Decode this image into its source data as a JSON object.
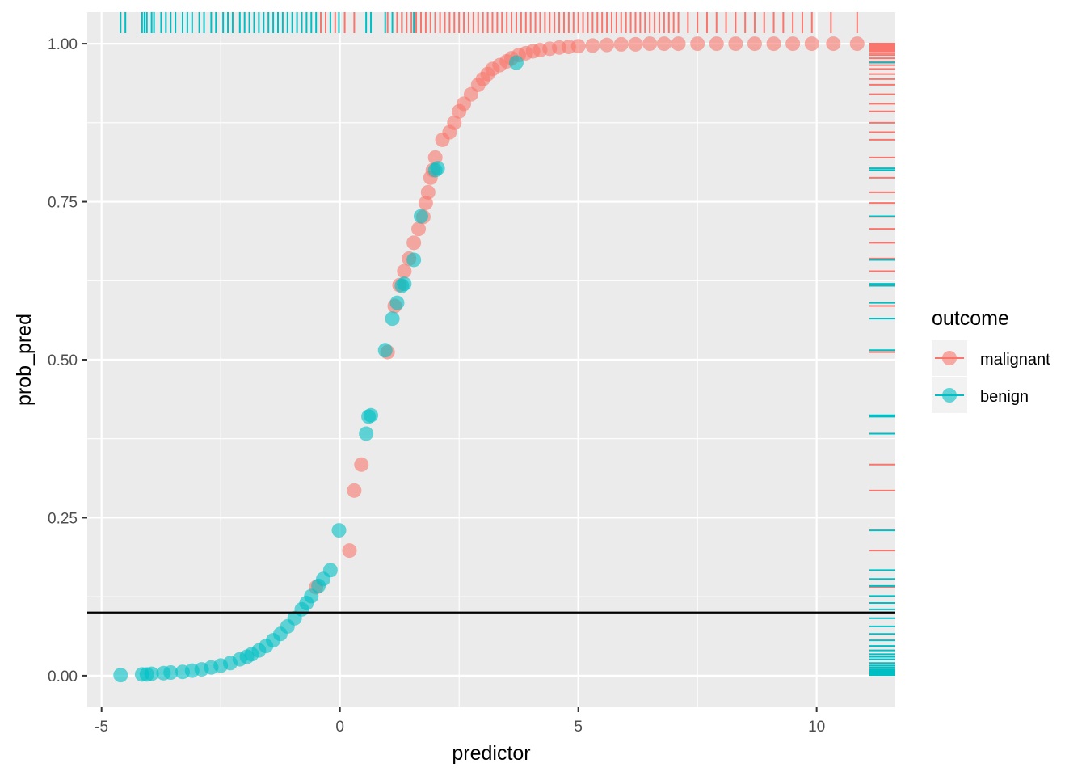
{
  "chart_data": {
    "type": "scatter",
    "title": "",
    "xlabel": "predictor",
    "ylabel": "prob_pred",
    "xlim": [
      -5.3,
      11.65
    ],
    "ylim": [
      -0.05,
      1.05
    ],
    "x_ticks": [
      -5,
      0,
      5,
      10
    ],
    "x_tick_labels": [
      "-5",
      "0",
      "5",
      "10"
    ],
    "y_ticks": [
      0,
      0.25,
      0.5,
      0.75,
      1
    ],
    "y_tick_labels": [
      "0.00",
      "0.25",
      "0.50",
      "0.75",
      "1.00"
    ],
    "hline": 0.1,
    "grid": true,
    "legend_position": "right",
    "legend_title": "outcome",
    "series": [
      {
        "name": "malignant",
        "color": "#F8766D",
        "x": [
          -0.5,
          0.2,
          0.3,
          0.45,
          1.0,
          1.15,
          1.25,
          1.35,
          1.45,
          1.55,
          1.65,
          1.75,
          1.8,
          1.85,
          1.9,
          1.95,
          2.0,
          2.15,
          2.3,
          2.4,
          2.5,
          2.6,
          2.75,
          2.9,
          3.0,
          3.1,
          3.2,
          3.35,
          3.5,
          3.6,
          3.75,
          3.9,
          4.05,
          4.2,
          4.4,
          4.6,
          4.8,
          5.0,
          5.3,
          5.6,
          5.9,
          6.2,
          6.5,
          6.8,
          7.1,
          7.5,
          7.9,
          8.3,
          8.7,
          9.1,
          9.5,
          9.9,
          10.35,
          10.85
        ],
        "y": [
          0.14,
          0.198,
          0.293,
          0.334,
          0.512,
          0.585,
          0.618,
          0.64,
          0.66,
          0.685,
          0.707,
          0.726,
          0.748,
          0.765,
          0.788,
          0.8,
          0.82,
          0.848,
          0.86,
          0.875,
          0.893,
          0.905,
          0.92,
          0.935,
          0.944,
          0.952,
          0.96,
          0.966,
          0.972,
          0.977,
          0.982,
          0.985,
          0.988,
          0.99,
          0.992,
          0.994,
          0.995,
          0.996,
          0.997,
          0.998,
          0.999,
          0.999,
          1.0,
          1.0,
          1.0,
          1.0,
          1.0,
          1.0,
          1.0,
          1.0,
          1.0,
          1.0,
          1.0,
          1.0
        ]
      },
      {
        "name": "benign",
        "color": "#00BFC4",
        "x": [
          -4.6,
          -4.15,
          -4.05,
          -3.95,
          -3.7,
          -3.55,
          -3.3,
          -3.1,
          -2.9,
          -2.7,
          -2.5,
          -2.3,
          -2.1,
          -1.95,
          -1.85,
          -1.7,
          -1.55,
          -1.4,
          -1.25,
          -1.1,
          -0.95,
          -0.8,
          -0.7,
          -0.6,
          -0.45,
          -0.35,
          -0.2,
          -0.02,
          0.55,
          0.6,
          0.65,
          0.95,
          1.1,
          1.2,
          1.3,
          1.35,
          1.55,
          1.7,
          2.0,
          2.05,
          3.7
        ],
        "y": [
          0.001,
          0.002,
          0.002,
          0.003,
          0.004,
          0.005,
          0.006,
          0.008,
          0.01,
          0.013,
          0.016,
          0.02,
          0.026,
          0.03,
          0.034,
          0.04,
          0.047,
          0.056,
          0.066,
          0.078,
          0.091,
          0.105,
          0.115,
          0.126,
          0.142,
          0.153,
          0.167,
          0.23,
          0.383,
          0.41,
          0.412,
          0.515,
          0.565,
          0.59,
          0.617,
          0.62,
          0.658,
          0.727,
          0.8,
          0.803,
          0.97
        ]
      }
    ],
    "rug_top": {
      "malignant": [
        -0.4,
        -0.3,
        -0.1,
        0.1,
        0.3,
        1.0,
        1.2,
        1.3,
        1.4,
        1.5,
        1.6,
        1.7,
        1.8,
        1.9,
        2.0,
        2.1,
        2.2,
        2.3,
        2.4,
        2.5,
        2.6,
        2.7,
        2.8,
        2.9,
        3.0,
        3.1,
        3.2,
        3.3,
        3.4,
        3.5,
        3.6,
        3.7,
        3.8,
        3.9,
        4.0,
        4.1,
        4.2,
        4.3,
        4.4,
        4.5,
        4.6,
        4.7,
        4.8,
        4.9,
        5.0,
        5.1,
        5.2,
        5.3,
        5.4,
        5.5,
        5.6,
        5.7,
        5.8,
        5.9,
        6.0,
        6.1,
        6.2,
        6.3,
        6.4,
        6.5,
        6.6,
        6.7,
        6.8,
        6.9,
        7.0,
        7.1,
        7.3,
        7.5,
        7.7,
        7.9,
        8.1,
        8.3,
        8.5,
        8.7,
        8.9,
        9.1,
        9.3,
        9.5,
        9.7,
        9.9,
        10.3,
        10.85
      ],
      "benign": [
        -4.6,
        -4.5,
        -4.15,
        -4.1,
        -4.05,
        -3.95,
        -3.9,
        -3.75,
        -3.65,
        -3.55,
        -3.45,
        -3.3,
        -3.2,
        -3.1,
        -2.95,
        -2.85,
        -2.7,
        -2.6,
        -2.45,
        -2.35,
        -2.25,
        -2.1,
        -2.0,
        -1.9,
        -1.8,
        -1.7,
        -1.6,
        -1.5,
        -1.4,
        -1.3,
        -1.2,
        -1.1,
        -1.0,
        -0.9,
        -0.8,
        -0.7,
        -0.6,
        -0.5,
        -0.4,
        -0.2,
        -0.02,
        0.55,
        0.65,
        0.95,
        1.1,
        1.2,
        1.3,
        1.55,
        1.7,
        2.0,
        3.7
      ]
    }
  }
}
